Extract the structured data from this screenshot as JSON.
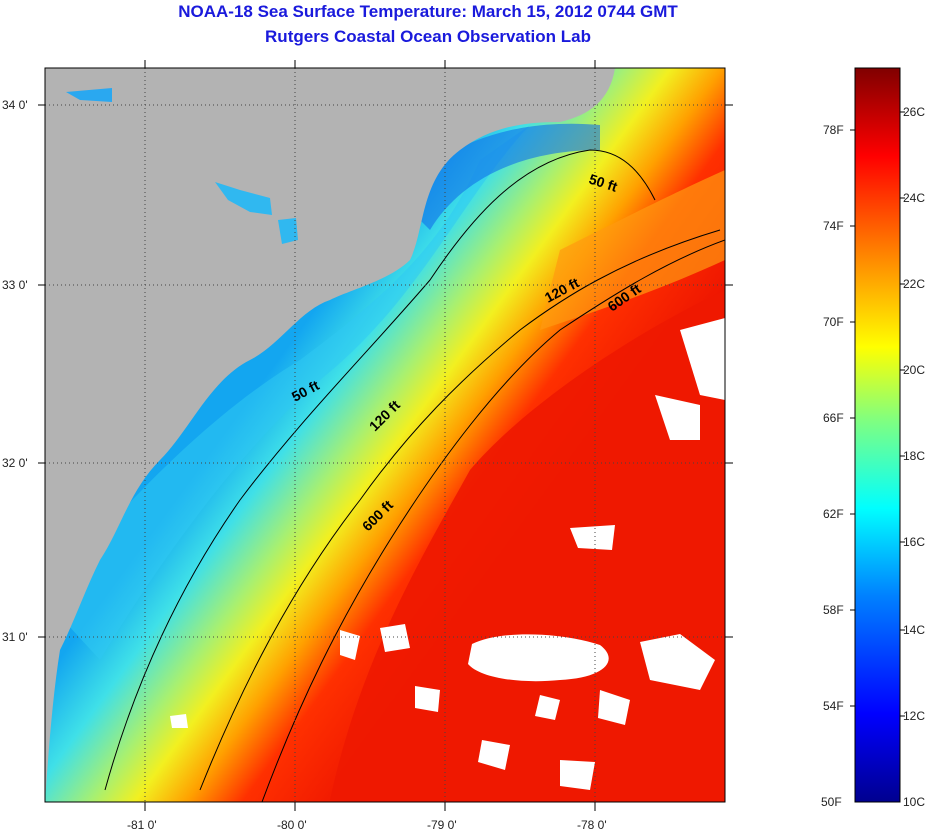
{
  "title": "NOAA-18 Sea Surface Temperature:  March 15, 2012 0744 GMT",
  "subtitle": "Rutgers Coastal Ocean Observation Lab",
  "map": {
    "lat_labels": [
      "34 0'",
      "33 0'",
      "32 0'",
      "31 0'"
    ],
    "lon_labels": [
      "-81 0'",
      "-80 0'",
      "-79 0'",
      "-78 0'"
    ],
    "isobaths": [
      {
        "label": "50 ft"
      },
      {
        "label": "50 ft"
      },
      {
        "label": "120 ft"
      },
      {
        "label": "120 ft"
      },
      {
        "label": "600 ft"
      },
      {
        "label": "600 ft"
      }
    ],
    "colors": {
      "land": "#b3b3b3",
      "cloud": "#ffffff"
    }
  },
  "colorbar": {
    "fahrenheit_labels": [
      "78F",
      "74F",
      "70F",
      "66F",
      "62F",
      "58F",
      "54F",
      "50F"
    ],
    "celsius_labels": [
      "26C",
      "24C",
      "22C",
      "20C",
      "18C",
      "16C",
      "14C",
      "12C",
      "10C"
    ],
    "range_c": [
      10,
      27
    ],
    "colors": [
      "#00008f",
      "#0000ff",
      "#0080ff",
      "#00ffff",
      "#80ff80",
      "#ffff00",
      "#ff8000",
      "#ff0000",
      "#800000"
    ]
  }
}
